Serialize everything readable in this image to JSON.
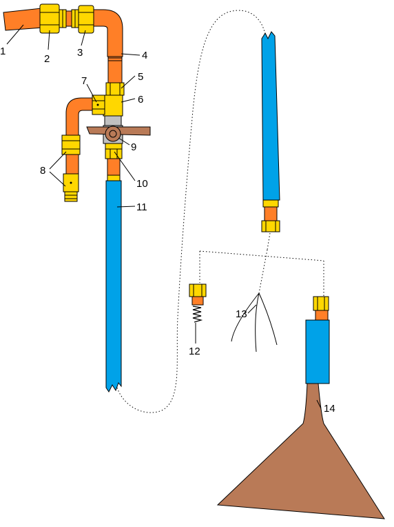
{
  "labels": {
    "l1": "1",
    "l2": "2",
    "l3": "3",
    "l4": "4",
    "l5": "5",
    "l6": "6",
    "l7": "7",
    "l8": "8",
    "l9": "9",
    "l10": "10",
    "l11": "11",
    "l12": "12",
    "l13": "13",
    "l14": "14"
  },
  "colors": {
    "copper_pipe": "#ff7f27",
    "brass_fitting": "#ffd700",
    "hose": "#00a2e8",
    "valve_handle": "#b97a57",
    "funnel": "#b97a57",
    "leader": "#000000"
  }
}
